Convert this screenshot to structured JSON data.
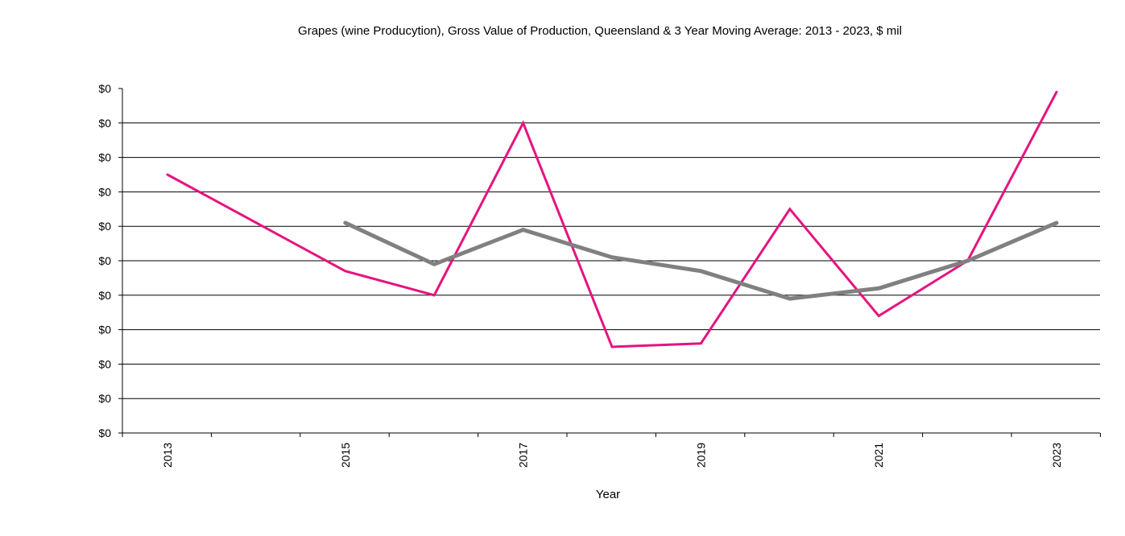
{
  "chart_data": {
    "type": "line",
    "title": "Grapes (wine Producytion), Gross Value of Production, Queensland & 3 Year Moving Average: 2013 - 2023, $ mil",
    "xlabel": "Year",
    "ylabel": "",
    "x": [
      2013,
      2014,
      2015,
      2016,
      2017,
      2018,
      2019,
      2020,
      2021,
      2022,
      2023
    ],
    "x_tick_labels": [
      "2013",
      "",
      "2015",
      "",
      "2017",
      "",
      "2019",
      "",
      "2021",
      "",
      "2023"
    ],
    "y_tick_labels": [
      "$0",
      "$0",
      "$0",
      "$0",
      "$0",
      "$0",
      "$0",
      "$0",
      "$0",
      "$0",
      "$0"
    ],
    "ylim": [
      0,
      10
    ],
    "grid": true,
    "legend": "none",
    "series": [
      {
        "name": "Gross Value of Production",
        "color": "#e6137f",
        "values": [
          7.5,
          null,
          4.7,
          4.0,
          9.0,
          2.5,
          2.6,
          6.5,
          3.4,
          5.0,
          9.9
        ]
      },
      {
        "name": "3 Year Moving Average",
        "color": "#808080",
        "values": [
          null,
          null,
          6.1,
          4.9,
          5.9,
          5.1,
          4.7,
          3.9,
          4.2,
          5.0,
          6.1
        ]
      }
    ]
  }
}
